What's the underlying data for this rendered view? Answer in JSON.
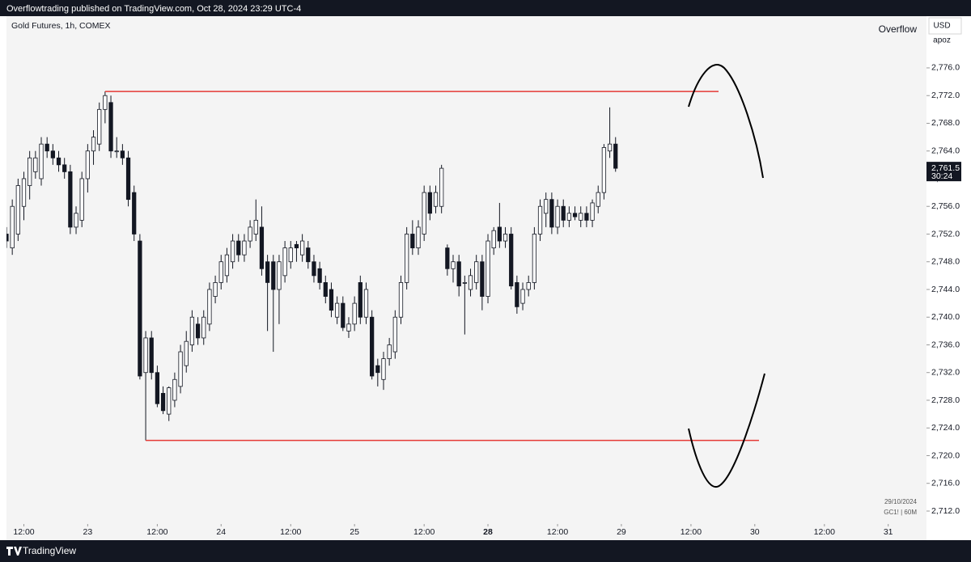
{
  "header": {
    "publisher": "Overflowtrading published on TradingView.com, Oct 28, 2024 23:29 UTC-4",
    "brand": "TradingView",
    "author": "Overflow",
    "currency": "USD",
    "scale_mode": "apoz",
    "date": "29/10/2024",
    "symbol_info": "GC1! | 60M"
  },
  "chart_data": {
    "type": "candlestick",
    "title": "Gold Futures, 1h, COMEX",
    "up_color": "#ffffff",
    "down_color": "#131722",
    "wick_color": "#131722",
    "candles": [
      [
        2752,
        2753,
        2750,
        2751
      ],
      [
        2750,
        2757,
        2749,
        2756
      ],
      [
        2752,
        2760,
        2751,
        2759
      ],
      [
        2756,
        2761,
        2754,
        2760
      ],
      [
        2759,
        2764,
        2757,
        2763
      ],
      [
        2761,
        2764,
        2760,
        2763
      ],
      [
        2760,
        2766,
        2759,
        2765
      ],
      [
        2765,
        2766,
        2763,
        2764
      ],
      [
        2764,
        2765,
        2762,
        2763
      ],
      [
        2763,
        2764,
        2761,
        2762
      ],
      [
        2762,
        2763,
        2760,
        2761
      ],
      [
        2761,
        2762,
        2752,
        2753
      ],
      [
        2753,
        2756,
        2752,
        2755
      ],
      [
        2754,
        2761,
        2753,
        2760
      ],
      [
        2760,
        2765,
        2758,
        2764
      ],
      [
        2764,
        2767,
        2762,
        2766
      ],
      [
        2765,
        2771,
        2764,
        2770
      ],
      [
        2770,
        2772.6,
        2768,
        2772
      ],
      [
        2771,
        2772,
        2763,
        2764
      ],
      [
        2764,
        2766,
        2763,
        2764
      ],
      [
        2764,
        2765,
        2762,
        2763
      ],
      [
        2763,
        2764,
        2756,
        2757
      ],
      [
        2758,
        2759,
        2751,
        2752
      ],
      [
        2751,
        2752,
        2731,
        2731.5
      ],
      [
        2732,
        2738,
        2722.2,
        2737
      ],
      [
        2737,
        2738,
        2731,
        2732
      ],
      [
        2732,
        2733,
        2727,
        2727.5
      ],
      [
        2729,
        2730,
        2726,
        2726.5
      ],
      [
        2726,
        2730,
        2725,
        2729.8
      ],
      [
        2728,
        2732,
        2727,
        2731
      ],
      [
        2730,
        2736,
        2729,
        2735
      ],
      [
        2733,
        2738,
        2732,
        2736.5
      ],
      [
        2736,
        2741,
        2735,
        2740
      ],
      [
        2739,
        2740,
        2736,
        2737
      ],
      [
        2737,
        2741,
        2736,
        2740
      ],
      [
        2739,
        2745,
        2738,
        2744
      ],
      [
        2743,
        2746,
        2742,
        2745
      ],
      [
        2745,
        2749,
        2744,
        2748
      ],
      [
        2746,
        2750,
        2745,
        2749
      ],
      [
        2748,
        2752,
        2747,
        2751
      ],
      [
        2751,
        2752,
        2748,
        2749
      ],
      [
        2749,
        2752,
        2748,
        2751
      ],
      [
        2751,
        2754,
        2750,
        2753
      ],
      [
        2752,
        2757,
        2751,
        2754
      ],
      [
        2753,
        2756,
        2746,
        2747
      ],
      [
        2748,
        2749,
        2738,
        2745
      ],
      [
        2748,
        2749,
        2735,
        2744
      ],
      [
        2744,
        2749,
        2739,
        2748
      ],
      [
        2746,
        2751,
        2745,
        2750
      ],
      [
        2748,
        2751,
        2747,
        2750
      ],
      [
        2750.5,
        2751,
        2748,
        2750
      ],
      [
        2749,
        2752,
        2748,
        2751
      ],
      [
        2750,
        2751,
        2747,
        2748
      ],
      [
        2748,
        2749,
        2745,
        2746
      ],
      [
        2747,
        2748,
        2744,
        2745
      ],
      [
        2745,
        2746,
        2742,
        2743
      ],
      [
        2744,
        2745,
        2740,
        2741
      ],
      [
        2740,
        2743,
        2739,
        2742
      ],
      [
        2742,
        2743,
        2738,
        2738.5
      ],
      [
        2738,
        2740,
        2737,
        2739
      ],
      [
        2739,
        2743,
        2738,
        2742
      ],
      [
        2745,
        2746,
        2739,
        2740
      ],
      [
        2740,
        2745,
        2739,
        2744
      ],
      [
        2740,
        2741,
        2731,
        2731.5
      ],
      [
        2733,
        2734,
        2730,
        2732
      ],
      [
        2731,
        2735,
        2729.5,
        2734
      ],
      [
        2734,
        2737,
        2733,
        2736
      ],
      [
        2735,
        2741,
        2734,
        2740
      ],
      [
        2740,
        2746,
        2739,
        2745
      ],
      [
        2745,
        2753,
        2744,
        2752
      ],
      [
        2752,
        2754,
        2749,
        2750
      ],
      [
        2750,
        2754,
        2749,
        2753
      ],
      [
        2752,
        2759,
        2751,
        2758
      ],
      [
        2758,
        2759,
        2754,
        2755
      ],
      [
        2756,
        2759,
        2755,
        2758
      ],
      [
        2756,
        2762,
        2755,
        2761.5
      ],
      [
        2750,
        2750.5,
        2746,
        2747
      ],
      [
        2747,
        2749,
        2745,
        2748
      ],
      [
        2748,
        2749,
        2743,
        2744.5
      ],
      [
        2745,
        2746,
        2737.5,
        2745
      ],
      [
        2744,
        2747,
        2743,
        2746
      ],
      [
        2745,
        2749,
        2744,
        2748
      ],
      [
        2748,
        2749,
        2741,
        2743
      ],
      [
        2743,
        2752,
        2742,
        2751
      ],
      [
        2750,
        2753,
        2749,
        2752.5
      ],
      [
        2753,
        2756.5,
        2750,
        2751
      ],
      [
        2751,
        2753,
        2750,
        2752
      ],
      [
        2752,
        2753,
        2744,
        2744.5
      ],
      [
        2745,
        2746,
        2740.5,
        2741.5
      ],
      [
        2742,
        2745,
        2741,
        2744
      ],
      [
        2744,
        2746,
        2743,
        2745
      ],
      [
        2745,
        2753,
        2744,
        2752
      ],
      [
        2752,
        2757,
        2751,
        2756
      ],
      [
        2755,
        2758,
        2753,
        2757
      ],
      [
        2757,
        2758,
        2752,
        2753
      ],
      [
        2753,
        2757,
        2752,
        2756
      ],
      [
        2756,
        2757,
        2753,
        2754
      ],
      [
        2754,
        2756,
        2753,
        2755
      ],
      [
        2755,
        2756,
        2754,
        2754.5
      ],
      [
        2754,
        2756,
        2753,
        2755
      ],
      [
        2755,
        2756,
        2753,
        2754
      ],
      [
        2754,
        2757,
        2753,
        2756.5
      ],
      [
        2756,
        2759,
        2755,
        2758
      ],
      [
        2758,
        2765,
        2757,
        2764.5
      ],
      [
        2764,
        2770.3,
        2763,
        2765
      ],
      [
        2765,
        2766,
        2761,
        2761.5
      ]
    ],
    "levels": [
      {
        "value": 2772.6,
        "color": "#e53935"
      },
      {
        "value": 2722.2,
        "color": "#e53935"
      }
    ],
    "current_price": {
      "value": 2761.5,
      "label": "2,761.5",
      "countdown": "30:24"
    },
    "ylim": [
      2710.13,
      2783.47
    ],
    "yticks": [
      {
        "value": 2776,
        "label": "2,776.0"
      },
      {
        "value": 2772,
        "label": "2,772.0"
      },
      {
        "value": 2768,
        "label": "2,768.0"
      },
      {
        "value": 2764,
        "label": "2,764.0"
      },
      {
        "value": 2760,
        "label": "2,760.0"
      },
      {
        "value": 2756,
        "label": "2,756.0"
      },
      {
        "value": 2752,
        "label": "2,752.0"
      },
      {
        "value": 2748,
        "label": "2,748.0"
      },
      {
        "value": 2744,
        "label": "2,744.0"
      },
      {
        "value": 2740,
        "label": "2,740.0"
      },
      {
        "value": 2736,
        "label": "2,736.0"
      },
      {
        "value": 2732,
        "label": "2,732.0"
      },
      {
        "value": 2728,
        "label": "2,728.0"
      },
      {
        "value": 2724,
        "label": "2,724.0"
      },
      {
        "value": 2720,
        "label": "2,720.0"
      },
      {
        "value": 2716,
        "label": "2,716.0"
      },
      {
        "value": 2712,
        "label": "2,712.0"
      }
    ],
    "xlim": [
      0,
      158.6
    ],
    "xticks": [
      {
        "value": 3,
        "label": "12:00"
      },
      {
        "value": 14,
        "label": "23"
      },
      {
        "value": 26,
        "label": "12:00"
      },
      {
        "value": 37,
        "label": "24"
      },
      {
        "value": 49,
        "label": "12:00"
      },
      {
        "value": 60,
        "label": "25"
      },
      {
        "value": 72,
        "label": "12:00"
      },
      {
        "value": 83,
        "label": "28",
        "bold": true
      },
      {
        "value": 95,
        "label": "12:00"
      },
      {
        "value": 106,
        "label": "29"
      },
      {
        "value": 118,
        "label": "12:00"
      },
      {
        "value": 129,
        "label": "30"
      },
      {
        "value": 141,
        "label": "12:00"
      },
      {
        "value": 152,
        "label": "31"
      }
    ]
  }
}
